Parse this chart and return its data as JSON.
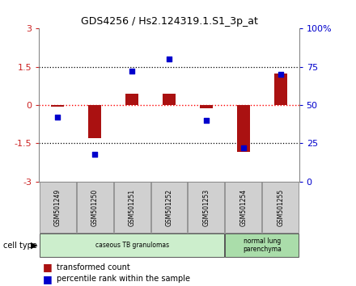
{
  "title": "GDS4256 / Hs2.124319.1.S1_3p_at",
  "samples": [
    "GSM501249",
    "GSM501250",
    "GSM501251",
    "GSM501252",
    "GSM501253",
    "GSM501254",
    "GSM501255"
  ],
  "transformed_count": [
    -0.05,
    -1.3,
    0.45,
    0.45,
    -0.12,
    -1.85,
    1.25
  ],
  "percentile_rank": [
    42,
    18,
    72,
    80,
    40,
    22,
    70
  ],
  "ylim_left": [
    -3,
    3
  ],
  "ylim_right": [
    0,
    100
  ],
  "yticks_left": [
    -3,
    -1.5,
    0,
    1.5,
    3
  ],
  "yticks_right": [
    0,
    25,
    50,
    75,
    100
  ],
  "yticklabels_left": [
    "-3",
    "-1.5",
    "0",
    "1.5",
    "3"
  ],
  "yticklabels_right": [
    "0",
    "25",
    "50",
    "75",
    "100%"
  ],
  "hlines_black": [
    1.5,
    -1.5
  ],
  "hline_red": 0.0,
  "bar_color": "#aa1111",
  "dot_color": "#0000cc",
  "bar_width": 0.35,
  "cell_type_groups": [
    {
      "label": "caseous TB granulomas",
      "samples": [
        0,
        1,
        2,
        3,
        4
      ],
      "color": "#cceecc"
    },
    {
      "label": "normal lung\nparenchyma",
      "samples": [
        5,
        6
      ],
      "color": "#aaddaa"
    }
  ],
  "cell_type_label": "cell type",
  "legend_bar_label": "transformed count",
  "legend_dot_label": "percentile rank within the sample",
  "tick_color_left": "#cc2222",
  "tick_color_right": "#0000cc",
  "plot_bg": "#ffffff",
  "sample_box_color": "#d0d0d0"
}
